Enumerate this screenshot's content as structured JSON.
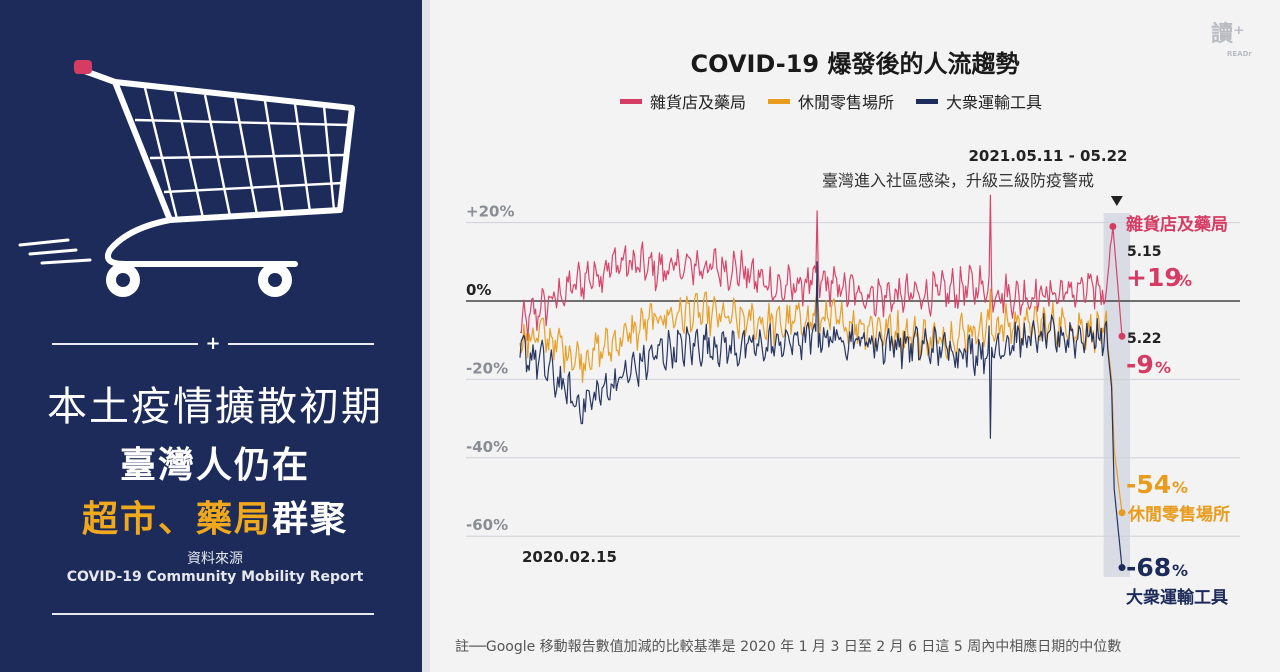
{
  "brand": {
    "logo_text": "讀⁺",
    "logo_sub": "READr"
  },
  "left_panel": {
    "headline_line1": "本土疫情擴散初期",
    "headline_line2": "臺灣人仍在",
    "headline_line3_highlight": "超市、藥局",
    "headline_line3_rest": "群聚",
    "source_label": "資料來源",
    "source_name": "COVID-19 Community Mobility Report",
    "plus": "+"
  },
  "colors": {
    "grocery": "#d63c63",
    "retail": "#e89b1c",
    "transit": "#1c2b59",
    "panel_bg": "#1c2b59",
    "highlight_yellow": "#f0a81c"
  },
  "footnote": "註──Google 移動報告數值加減的比較基準是 2020 年 1 月 3 日至 2 月 6 日這 5 周內中相應日期的中位數",
  "chart_data": {
    "type": "line",
    "title": "COVID-19 爆發後的人流趨勢",
    "x_start_label": "2020.02.15",
    "x_range": [
      "2020-02-15",
      "2021-05-22"
    ],
    "ylim": [
      -70,
      25
    ],
    "y_ticks": [
      {
        "value": 20,
        "label": "+20%"
      },
      {
        "value": 0,
        "label": "0%"
      },
      {
        "value": -20,
        "label": "-20%"
      },
      {
        "value": -40,
        "label": "-40%"
      },
      {
        "value": -60,
        "label": "-60%"
      }
    ],
    "grid": true,
    "legend_position": "top-center",
    "series": [
      {
        "name": "雜貨店及藥局",
        "color": "#d63c63",
        "keypoints": [
          [
            "2020-02-15",
            -7
          ],
          [
            "2020-03-01",
            -2
          ],
          [
            "2020-04-01",
            5
          ],
          [
            "2020-05-01",
            10
          ],
          [
            "2020-06-01",
            8
          ],
          [
            "2020-07-01",
            9
          ],
          [
            "2020-08-01",
            8
          ],
          [
            "2020-09-01",
            3
          ],
          [
            "2020-10-01",
            5
          ],
          [
            "2020-11-01",
            2
          ],
          [
            "2020-12-01",
            1
          ],
          [
            "2021-01-01",
            2
          ],
          [
            "2021-02-01",
            4
          ],
          [
            "2021-03-01",
            1
          ],
          [
            "2021-04-01",
            2
          ],
          [
            "2021-05-10",
            3
          ],
          [
            "2021-05-15",
            19
          ],
          [
            "2021-05-22",
            -9
          ]
        ],
        "spikes": [
          [
            "2020-09-30",
            23
          ],
          [
            "2021-02-10",
            27
          ],
          [
            "2021-05-13",
            14
          ]
        ]
      },
      {
        "name": "休閒零售場所",
        "color": "#e89b1c",
        "keypoints": [
          [
            "2020-02-15",
            -11
          ],
          [
            "2020-03-01",
            -8
          ],
          [
            "2020-04-01",
            -15
          ],
          [
            "2020-05-01",
            -10
          ],
          [
            "2020-06-01",
            -4
          ],
          [
            "2020-07-01",
            -3
          ],
          [
            "2020-08-01",
            -5
          ],
          [
            "2020-09-01",
            -6
          ],
          [
            "2020-10-01",
            -4
          ],
          [
            "2020-11-01",
            -6
          ],
          [
            "2020-12-01",
            -8
          ],
          [
            "2021-01-01",
            -10
          ],
          [
            "2021-02-01",
            -7
          ],
          [
            "2021-03-01",
            -6
          ],
          [
            "2021-04-01",
            -6
          ],
          [
            "2021-05-10",
            -8
          ],
          [
            "2021-05-14",
            -20
          ],
          [
            "2021-05-16",
            -38
          ],
          [
            "2021-05-22",
            -54
          ]
        ],
        "spikes": [
          [
            "2020-09-30",
            2
          ],
          [
            "2021-02-10",
            3
          ]
        ]
      },
      {
        "name": "大衆運輸工具",
        "color": "#1c2b59",
        "keypoints": [
          [
            "2020-02-15",
            -13
          ],
          [
            "2020-03-01",
            -15
          ],
          [
            "2020-04-01",
            -27
          ],
          [
            "2020-05-01",
            -20
          ],
          [
            "2020-06-01",
            -13
          ],
          [
            "2020-07-01",
            -11
          ],
          [
            "2020-08-01",
            -12
          ],
          [
            "2020-09-01",
            -11
          ],
          [
            "2020-10-01",
            -9
          ],
          [
            "2020-11-01",
            -10
          ],
          [
            "2020-12-01",
            -11
          ],
          [
            "2021-01-01",
            -12
          ],
          [
            "2021-02-01",
            -13
          ],
          [
            "2021-03-01",
            -10
          ],
          [
            "2021-04-01",
            -9
          ],
          [
            "2021-05-10",
            -9
          ],
          [
            "2021-05-14",
            -22
          ],
          [
            "2021-05-16",
            -48
          ],
          [
            "2021-05-22",
            -68
          ]
        ],
        "spikes": [
          [
            "2020-09-30",
            10
          ],
          [
            "2021-02-10",
            -35
          ]
        ]
      }
    ],
    "event": {
      "date_range": "2021.05.11 - 05.22",
      "description": "臺灣進入社區感染，升級三級防疫警戒",
      "start": "2021-05-11",
      "end": "2021-05-22"
    },
    "annotations": {
      "grocery_label": "雜貨店及藥局",
      "date_515": "5.15",
      "grocery_515_value": "+19",
      "date_522": "5.22",
      "grocery_522_value": "-9",
      "retail_value": "-54",
      "retail_label": "休閒零售場所",
      "transit_value": "-68",
      "transit_label": "大衆運輸工具",
      "percent": "%"
    }
  }
}
